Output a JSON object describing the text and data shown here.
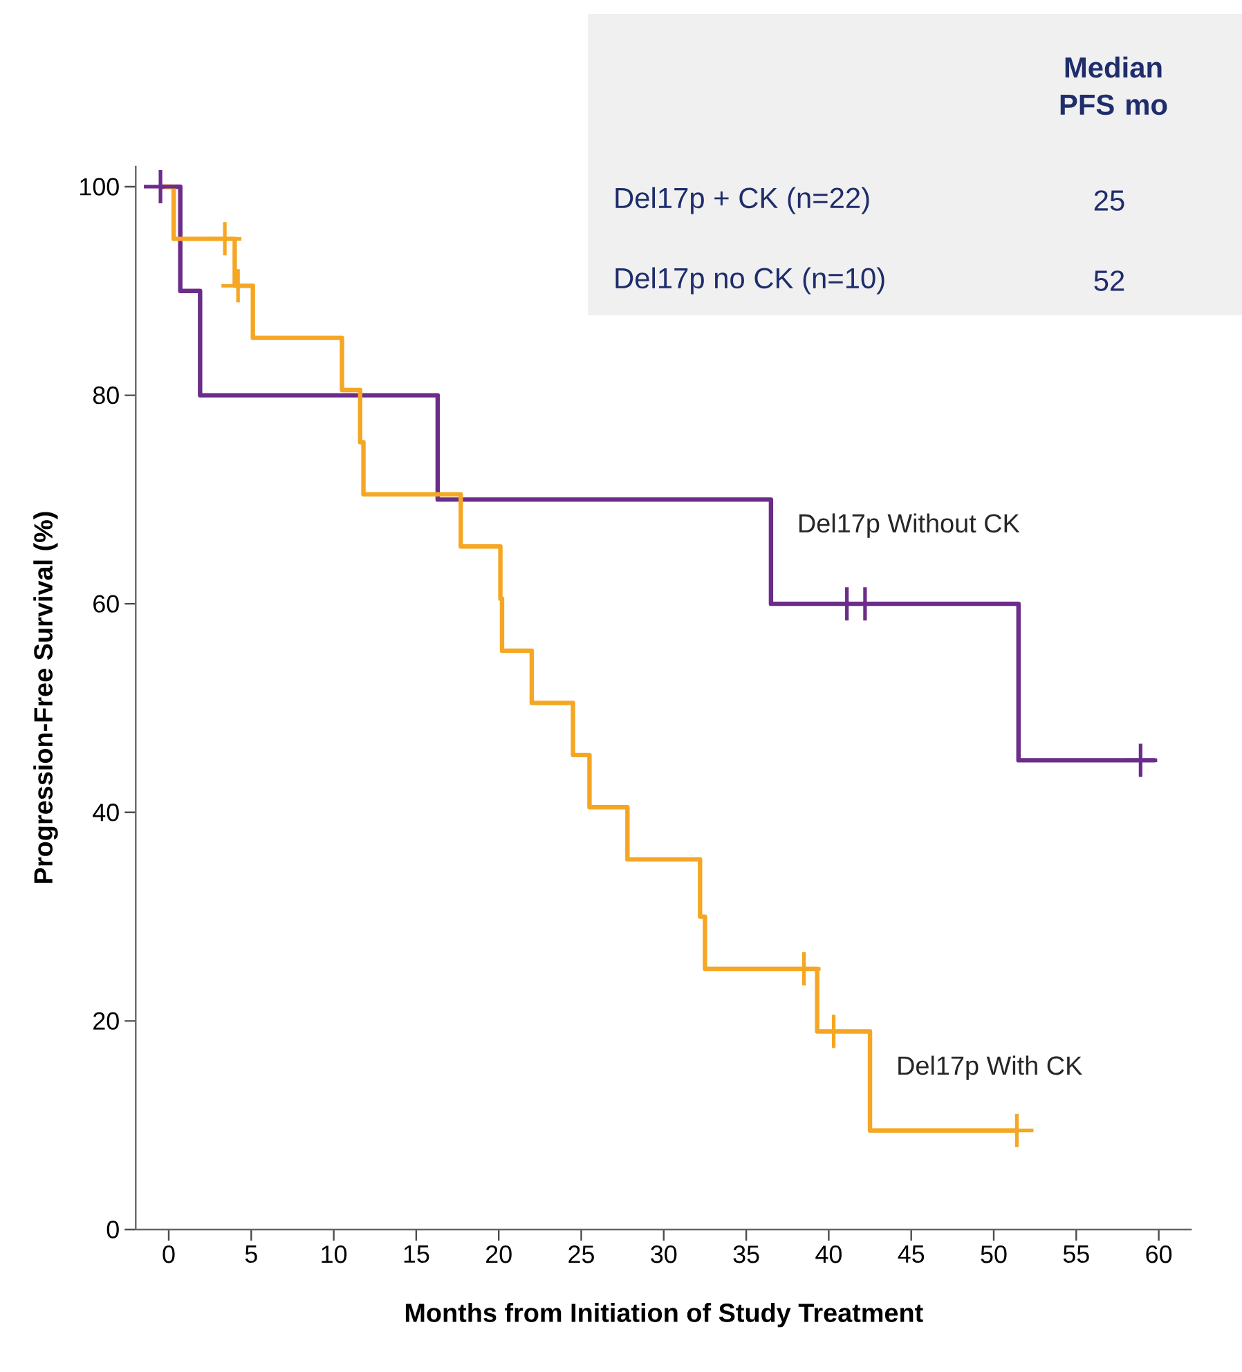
{
  "chart_data": {
    "type": "step",
    "xlabel": "Months from Initiation of Study Treatment",
    "ylabel": "Progression-Free Survival (%)",
    "xlim": [
      -2,
      62
    ],
    "ylim": [
      0,
      102
    ],
    "xticks": [
      0,
      5,
      10,
      15,
      20,
      25,
      30,
      35,
      40,
      45,
      50,
      55,
      60
    ],
    "yticks": [
      0,
      20,
      40,
      60,
      80,
      100
    ],
    "grid": false,
    "legend": false,
    "series": [
      {
        "name": "Del17p Without CK",
        "color": "#6b2c8a",
        "x": [
          -0.5,
          0.7,
          1.9,
          16.3,
          36.5,
          51.5,
          59.8
        ],
        "values": [
          100,
          90,
          80,
          70,
          60,
          45,
          45
        ]
      },
      {
        "name": "Del17p With CK",
        "color": "#f5a623",
        "x": [
          -0.3,
          0.3,
          4.0,
          5.1,
          10.5,
          11.6,
          11.8,
          17.7,
          20.1,
          20.2,
          22,
          24.5,
          25.5,
          27.8,
          32.2,
          32.5,
          39.3,
          42.5,
          51.4
        ],
        "values": [
          100,
          95,
          90.5,
          85.5,
          80.5,
          75.5,
          70.5,
          65.5,
          60.5,
          55.5,
          50.5,
          45.5,
          40.5,
          35.5,
          30,
          25,
          19,
          9.5,
          9.5
        ]
      },
      {
        "type": "scatter",
        "marker": "cross",
        "color": "#6b2c8a",
        "x": [
          -0.5,
          41.1,
          42.2,
          58.9
        ],
        "values": [
          100,
          60,
          60,
          45
        ]
      },
      {
        "type": "scatter",
        "marker": "cross",
        "color": "#f5a623",
        "x": [
          3.4,
          4.2,
          38.5,
          40.3,
          51.4
        ],
        "values": [
          95,
          90.5,
          25,
          19,
          9.5
        ]
      }
    ],
    "annotations": [
      "Median PFS mo",
      "Del17p + CK (n=22)",
      "25",
      "Del17p no CK (n=10)",
      "52"
    ]
  }
}
